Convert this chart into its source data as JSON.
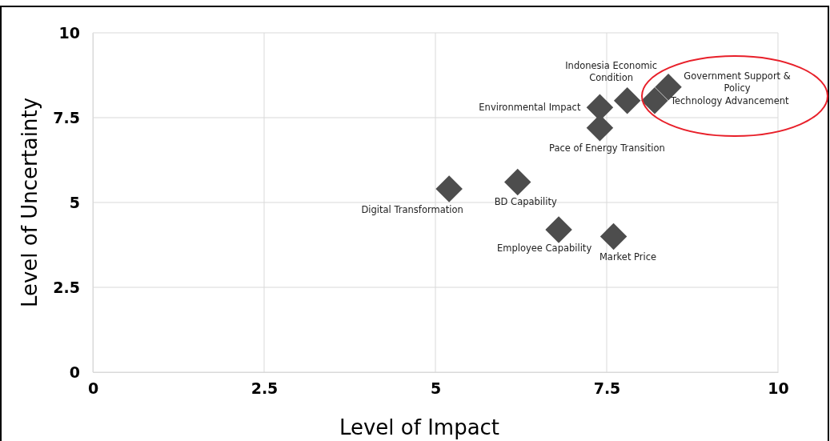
{
  "chart_data": {
    "type": "scatter",
    "xlabel": "Level of Impact",
    "ylabel": "Level of Uncertainty",
    "xlim": [
      0,
      10
    ],
    "ylim": [
      0,
      10
    ],
    "xticks": [
      0,
      2.5,
      5,
      7.5,
      10
    ],
    "yticks": [
      0,
      2.5,
      5,
      7.5,
      10
    ],
    "grid": true,
    "marker": "diamond",
    "series": [
      {
        "color": "#4d4d4d",
        "x": [
          8.4,
          8.2,
          7.8,
          7.4,
          7.4,
          6.2,
          5.2,
          6.8,
          7.6
        ],
        "values": [
          8.4,
          8.0,
          8.0,
          7.8,
          7.2,
          5.6,
          5.4,
          4.2,
          4.0
        ]
      }
    ],
    "annotations": [
      {
        "text": "Government Support & Policy",
        "x": 8.4,
        "y": 8.4
      },
      {
        "text": "Technology Advancement",
        "x": 8.2,
        "y": 8.0
      },
      {
        "text": "Indonesia Economic Condition",
        "x": 7.8,
        "y": 8.0
      },
      {
        "text": "Environmental Impact",
        "x": 7.4,
        "y": 7.8
      },
      {
        "text": "Pace of Energy Transition",
        "x": 7.4,
        "y": 7.2
      },
      {
        "text": "BD Capability",
        "x": 6.2,
        "y": 5.6
      },
      {
        "text": "Digital Transformation",
        "x": 5.2,
        "y": 5.4
      },
      {
        "text": "Employee Capability",
        "x": 6.8,
        "y": 4.2
      },
      {
        "text": "Market Price",
        "x": 7.6,
        "y": 4.0
      }
    ]
  }
}
